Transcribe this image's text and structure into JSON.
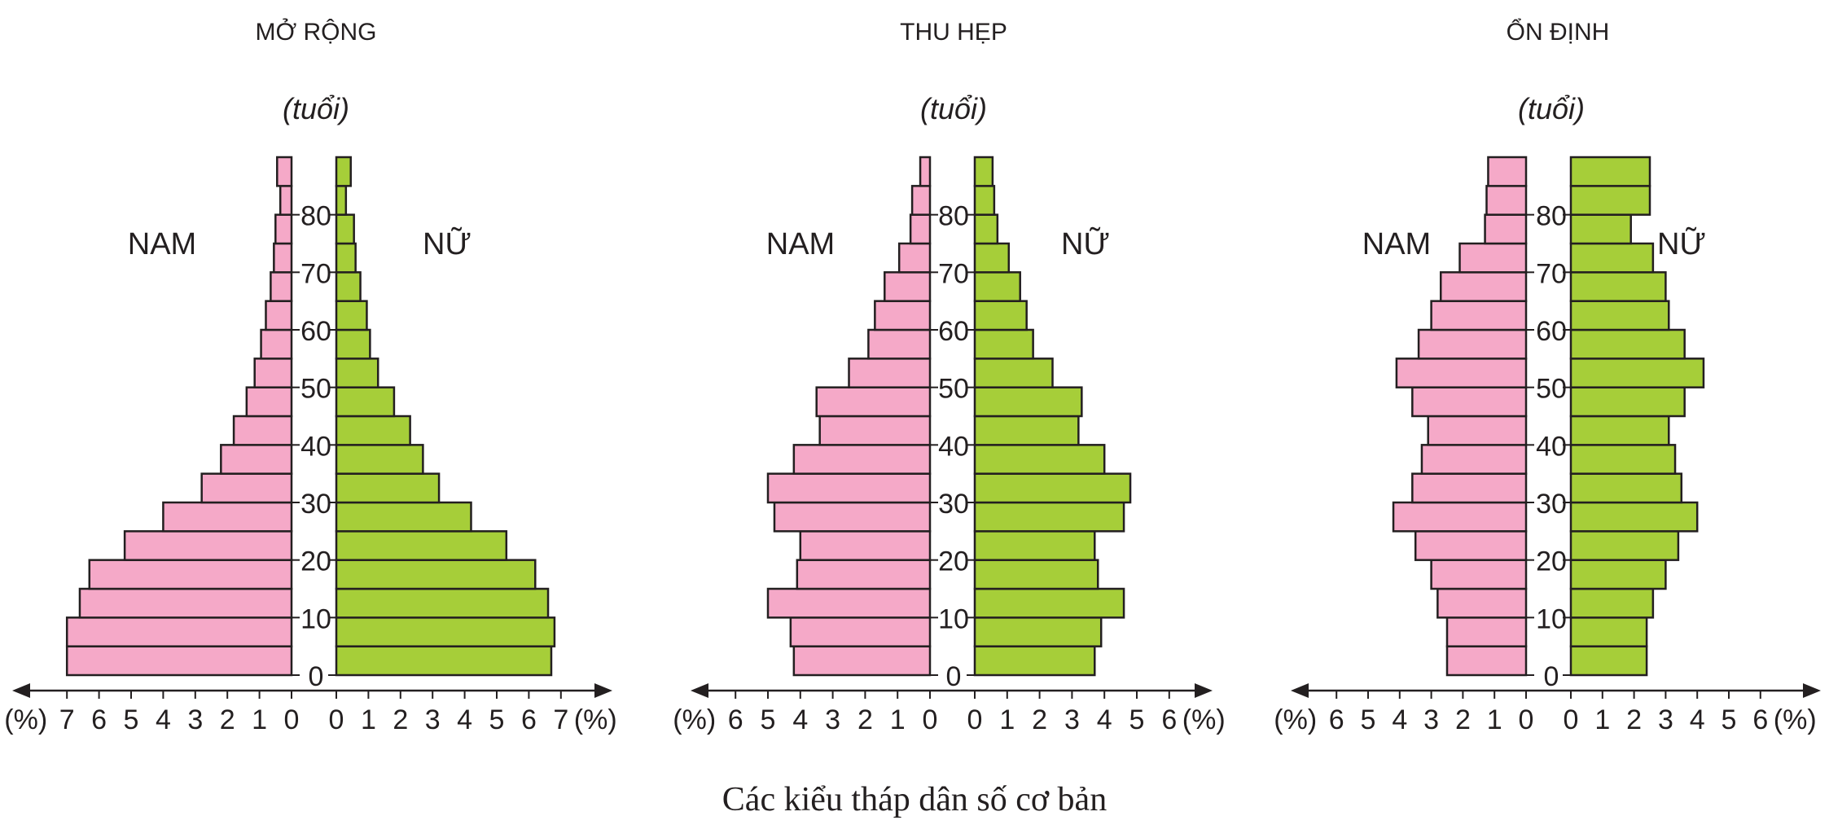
{
  "figure": {
    "caption": "Các kiểu tháp dân số cơ bản",
    "colors": {
      "male": "#f5a9c8",
      "female": "#a6ce39",
      "outline": "#231f20"
    }
  },
  "chart_data": [
    {
      "type": "bar",
      "orientation": "population-pyramid",
      "title": "MỞ RỘNG",
      "age_axis_label": "(tuổi)",
      "age_ticks": [
        0,
        10,
        20,
        30,
        40,
        50,
        60,
        70,
        80
      ],
      "age_groups": [
        "0-4",
        "5-9",
        "10-14",
        "15-19",
        "20-24",
        "25-29",
        "30-34",
        "35-39",
        "40-44",
        "45-49",
        "50-54",
        "55-59",
        "60-64",
        "65-69",
        "70-74",
        "75-79",
        "80-84",
        "85+"
      ],
      "xlabel_left": "(%)",
      "xlabel_right": "(%)",
      "xlim": [
        0,
        7
      ],
      "x_ticks": [
        0,
        1,
        2,
        3,
        4,
        5,
        6,
        7
      ],
      "series": [
        {
          "name": "NAM",
          "side": "left",
          "values": [
            7.0,
            7.0,
            6.6,
            6.3,
            5.2,
            4.0,
            2.8,
            2.2,
            1.8,
            1.4,
            1.15,
            0.95,
            0.8,
            0.65,
            0.55,
            0.5,
            0.35,
            0.45
          ]
        },
        {
          "name": "NỮ",
          "side": "right",
          "values": [
            6.7,
            6.8,
            6.6,
            6.2,
            5.3,
            4.2,
            3.2,
            2.7,
            2.3,
            1.8,
            1.3,
            1.05,
            0.95,
            0.75,
            0.6,
            0.55,
            0.3,
            0.45
          ]
        }
      ]
    },
    {
      "type": "bar",
      "orientation": "population-pyramid",
      "title": "THU HẸP",
      "age_axis_label": "(tuổi)",
      "age_ticks": [
        0,
        10,
        20,
        30,
        40,
        50,
        60,
        70,
        80
      ],
      "age_groups": [
        "0-4",
        "5-9",
        "10-14",
        "15-19",
        "20-24",
        "25-29",
        "30-34",
        "35-39",
        "40-44",
        "45-49",
        "50-54",
        "55-59",
        "60-64",
        "65-69",
        "70-74",
        "75-79",
        "80-84",
        "85+"
      ],
      "xlabel_left": "(%)",
      "xlabel_right": "(%)",
      "xlim": [
        0,
        6
      ],
      "x_ticks": [
        0,
        1,
        2,
        3,
        4,
        5,
        6
      ],
      "series": [
        {
          "name": "NAM",
          "side": "left",
          "values": [
            4.2,
            4.3,
            5.0,
            4.1,
            4.0,
            4.8,
            5.0,
            4.2,
            3.4,
            3.5,
            2.5,
            1.9,
            1.7,
            1.4,
            0.95,
            0.6,
            0.55,
            0.3
          ]
        },
        {
          "name": "NỮ",
          "side": "right",
          "values": [
            3.7,
            3.9,
            4.6,
            3.8,
            3.7,
            4.6,
            4.8,
            4.0,
            3.2,
            3.3,
            2.4,
            1.8,
            1.6,
            1.4,
            1.05,
            0.7,
            0.6,
            0.55
          ]
        }
      ]
    },
    {
      "type": "bar",
      "orientation": "population-pyramid",
      "title": "ỔN ĐỊNH",
      "age_axis_label": "(tuổi)",
      "age_ticks": [
        0,
        10,
        20,
        30,
        40,
        50,
        60,
        70,
        80
      ],
      "age_groups": [
        "0-4",
        "5-9",
        "10-14",
        "15-19",
        "20-24",
        "25-29",
        "30-34",
        "35-39",
        "40-44",
        "45-49",
        "50-54",
        "55-59",
        "60-64",
        "65-69",
        "70-74",
        "75-79",
        "80-84",
        "85+"
      ],
      "xlabel_left": "(%)",
      "xlabel_right": "(%)",
      "xlim": [
        0,
        6
      ],
      "x_ticks": [
        0,
        1,
        2,
        3,
        4,
        5,
        6
      ],
      "series": [
        {
          "name": "NAM",
          "side": "left",
          "values": [
            2.5,
            2.5,
            2.8,
            3.0,
            3.5,
            4.2,
            3.6,
            3.3,
            3.1,
            3.6,
            4.1,
            3.4,
            3.0,
            2.7,
            2.1,
            1.3,
            1.25,
            1.2
          ]
        },
        {
          "name": "NỮ",
          "side": "right",
          "values": [
            2.4,
            2.4,
            2.6,
            3.0,
            3.4,
            4.0,
            3.5,
            3.3,
            3.1,
            3.6,
            4.2,
            3.6,
            3.1,
            3.0,
            2.6,
            1.9,
            2.5,
            2.5
          ]
        }
      ]
    }
  ]
}
